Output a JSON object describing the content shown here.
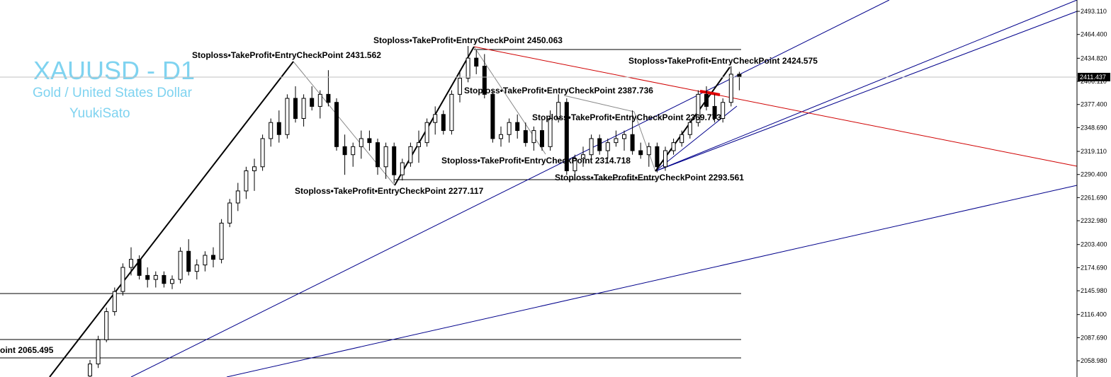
{
  "chart_data": {
    "type": "candlestick",
    "title": "XAUUSD - D1",
    "subtitle": "Gold / United States Dollar",
    "author": "YuukiSato",
    "ylim": [
      2038.8,
      2507.2
    ],
    "yticks": [
      {
        "value": 2493.11,
        "label": "2493.110"
      },
      {
        "value": 2464.4,
        "label": "2464.400"
      },
      {
        "value": 2434.82,
        "label": "2434.820"
      },
      {
        "value": 2406.11,
        "label": "2406.110"
      },
      {
        "value": 2377.4,
        "label": "2377.400"
      },
      {
        "value": 2348.69,
        "label": "2348.690"
      },
      {
        "value": 2319.11,
        "label": "2319.110"
      },
      {
        "value": 2290.4,
        "label": "2290.400"
      },
      {
        "value": 2261.69,
        "label": "2261.690"
      },
      {
        "value": 2232.98,
        "label": "2232.980"
      },
      {
        "value": 2203.4,
        "label": "2203.400"
      },
      {
        "value": 2174.69,
        "label": "2174.690"
      },
      {
        "value": 2145.98,
        "label": "2145.980"
      },
      {
        "value": 2116.4,
        "label": "2116.400"
      },
      {
        "value": 2087.69,
        "label": "2087.690"
      },
      {
        "value": 2058.98,
        "label": "2058.980"
      }
    ],
    "current_price": 2411.437,
    "candles": [
      [
        2040,
        2060,
        2035,
        2055
      ],
      [
        2055,
        2090,
        2050,
        2085
      ],
      [
        2085,
        2125,
        2082,
        2120
      ],
      [
        2120,
        2150,
        2115,
        2145
      ],
      [
        2145,
        2180,
        2140,
        2175
      ],
      [
        2175,
        2200,
        2165,
        2185
      ],
      [
        2185,
        2190,
        2160,
        2165
      ],
      [
        2165,
        2175,
        2150,
        2160
      ],
      [
        2160,
        2170,
        2150,
        2165
      ],
      [
        2165,
        2170,
        2150,
        2155
      ],
      [
        2155,
        2165,
        2148,
        2160
      ],
      [
        2160,
        2200,
        2155,
        2195
      ],
      [
        2195,
        2210,
        2165,
        2170
      ],
      [
        2170,
        2185,
        2160,
        2178
      ],
      [
        2178,
        2195,
        2170,
        2190
      ],
      [
        2190,
        2200,
        2175,
        2185
      ],
      [
        2185,
        2235,
        2180,
        2230
      ],
      [
        2230,
        2260,
        2225,
        2255
      ],
      [
        2255,
        2280,
        2245,
        2270
      ],
      [
        2270,
        2300,
        2260,
        2295
      ],
      [
        2295,
        2310,
        2270,
        2300
      ],
      [
        2300,
        2340,
        2295,
        2335
      ],
      [
        2335,
        2360,
        2325,
        2355
      ],
      [
        2355,
        2370,
        2330,
        2340
      ],
      [
        2340,
        2390,
        2335,
        2385
      ],
      [
        2385,
        2400,
        2355,
        2360
      ],
      [
        2360,
        2390,
        2350,
        2385
      ],
      [
        2385,
        2400,
        2370,
        2375
      ],
      [
        2375,
        2395,
        2360,
        2390
      ],
      [
        2390,
        2420,
        2375,
        2380
      ],
      [
        2380,
        2385,
        2320,
        2325
      ],
      [
        2325,
        2340,
        2290,
        2315
      ],
      [
        2315,
        2330,
        2300,
        2325
      ],
      [
        2325,
        2345,
        2310,
        2335
      ],
      [
        2335,
        2345,
        2320,
        2330
      ],
      [
        2330,
        2335,
        2290,
        2300
      ],
      [
        2300,
        2330,
        2285,
        2325
      ],
      [
        2325,
        2330,
        2280,
        2290
      ],
      [
        2290,
        2310,
        2283,
        2305
      ],
      [
        2305,
        2330,
        2300,
        2325
      ],
      [
        2325,
        2345,
        2305,
        2330
      ],
      [
        2330,
        2360,
        2325,
        2355
      ],
      [
        2355,
        2375,
        2340,
        2365
      ],
      [
        2365,
        2370,
        2340,
        2345
      ],
      [
        2345,
        2395,
        2340,
        2390
      ],
      [
        2390,
        2420,
        2380,
        2410
      ],
      [
        2410,
        2450,
        2405,
        2435
      ],
      [
        2435,
        2445,
        2415,
        2425
      ],
      [
        2425,
        2440,
        2385,
        2390
      ],
      [
        2390,
        2395,
        2330,
        2335
      ],
      [
        2335,
        2350,
        2325,
        2340
      ],
      [
        2340,
        2360,
        2330,
        2355
      ],
      [
        2355,
        2365,
        2335,
        2345
      ],
      [
        2345,
        2355,
        2325,
        2330
      ],
      [
        2330,
        2350,
        2320,
        2345
      ],
      [
        2345,
        2360,
        2320,
        2325
      ],
      [
        2325,
        2370,
        2320,
        2360
      ],
      [
        2360,
        2390,
        2355,
        2380
      ],
      [
        2380,
        2385,
        2290,
        2295
      ],
      [
        2295,
        2315,
        2290,
        2310
      ],
      [
        2310,
        2325,
        2300,
        2315
      ],
      [
        2315,
        2340,
        2310,
        2335
      ],
      [
        2335,
        2340,
        2315,
        2320
      ],
      [
        2320,
        2335,
        2310,
        2330
      ],
      [
        2330,
        2345,
        2325,
        2335
      ],
      [
        2335,
        2345,
        2320,
        2340
      ],
      [
        2340,
        2370,
        2315,
        2320
      ],
      [
        2320,
        2330,
        2310,
        2315
      ],
      [
        2315,
        2330,
        2300,
        2325
      ],
      [
        2325,
        2330,
        2293,
        2300
      ],
      [
        2300,
        2325,
        2295,
        2320
      ],
      [
        2320,
        2335,
        2315,
        2330
      ],
      [
        2330,
        2345,
        2325,
        2340
      ],
      [
        2340,
        2360,
        2335,
        2355
      ],
      [
        2355,
        2395,
        2350,
        2390
      ],
      [
        2390,
        2400,
        2370,
        2375
      ],
      [
        2375,
        2390,
        2355,
        2360
      ],
      [
        2360,
        2385,
        2355,
        2380
      ],
      [
        2380,
        2425,
        2375,
        2415
      ],
      [
        2415,
        2418,
        2395,
        2411.437
      ]
    ],
    "annotations": [
      "Stoploss•TakeProfit•EntryCheckPoint 2431.562",
      "Stoploss•TakeProfit•EntryCheckPoint 2450.063",
      "Stoploss•TakeProfit•EntryCheckPoint 2424.575",
      "Stoploss•TakeProfit•EntryCheckPoint 2387.736",
      "Stoploss•TakeProfit•EntryCheckPoint 2369.773",
      "Stoploss•TakeProfit•EntryCheckPoint 2314.718",
      "Stoploss•TakeProfit•EntryCheckPoint 2293.561",
      "Stoploss•TakeProfit•EntryCheckPoint 2277.117",
      "oint 2065.495"
    ]
  }
}
